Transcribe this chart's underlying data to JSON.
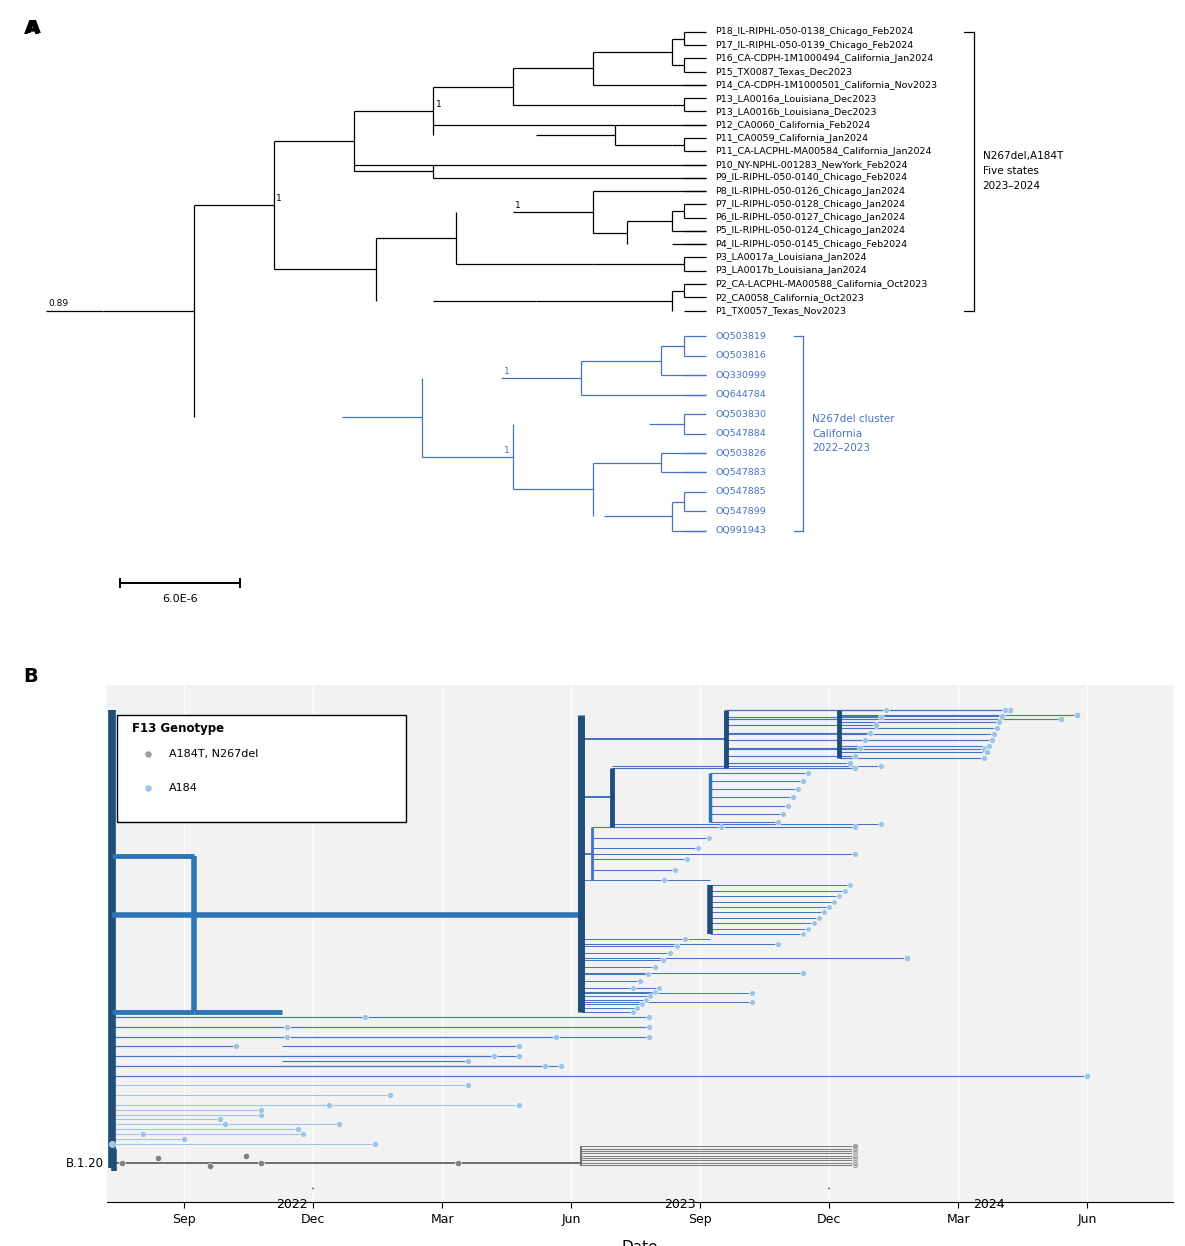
{
  "panel_A": {
    "black_taxa": [
      "P18_IL-RIPHL-050-0138_Chicago_Feb2024",
      "P17_IL-RIPHL-050-0139_Chicago_Feb2024",
      "P16_CA-CDPH-1M1000494_California_Jan2024",
      "P15_TX0087_Texas_Dec2023",
      "P14_CA-CDPH-1M1000501_California_Nov2023",
      "P13_LA0016a_Louisiana_Dec2023",
      "P13_LA0016b_Louisiana_Dec2023",
      "P12_CA0060_California_Feb2024",
      "P11_CA0059_California_Jan2024",
      "P11_CA-LACPHL-MA00584_California_Jan2024",
      "P10_NY-NPHL-001283_NewYork_Feb2024",
      "P9_IL-RIPHL-050-0140_Chicago_Feb2024",
      "P8_IL-RIPHL-050-0126_Chicago_Jan2024",
      "P7_IL-RIPHL-050-0128_Chicago_Jan2024",
      "P6_IL-RIPHL-050-0127_Chicago_Jan2024",
      "P5_IL-RIPHL-050-0124_Chicago_Jan2024",
      "P4_IL-RIPHL-050-0145_Chicago_Feb2024",
      "P3_LA0017a_Louisiana_Jan2024",
      "P3_LA0017b_Louisiana_Jan2024",
      "P2_CA-LACPHL-MA00588_California_Oct2023",
      "P2_CA0058_California_Oct2023",
      "P1_TX0057_Texas_Nov2023"
    ],
    "blue_taxa": [
      "OQ503819",
      "OQ503816",
      "OQ330999",
      "OQ644784",
      "OQ503830",
      "OQ547884",
      "OQ503826",
      "OQ547883",
      "OQ547885",
      "OQ547899",
      "OQ991943"
    ],
    "black_annotation": "N267del,A184T\nFive states\n2023–2024",
    "blue_annotation": "N267del cluster\nCalifornia\n2022–2023",
    "scale_label": "6.0E-6",
    "black_color": "#000000",
    "blue_color": "#4472C4",
    "bg_color": "#F2F2F2"
  },
  "panel_B": {
    "xlabel": "Date",
    "b120_label": "B.1.20",
    "legend_title": "F13 Genotype",
    "legend_entries": [
      "A184T, N267del",
      "A184"
    ],
    "legend_colors": [
      "#808080",
      "#5B9BD5"
    ],
    "blue_color": "#4472C4",
    "medium_blue": "#2E75B6",
    "dark_blue": "#1F4E79",
    "light_blue": "#9DC3E6",
    "gray_color": "#808080",
    "dark_gray": "#595959",
    "bg_color": "#F2F2F2",
    "grid_color": "#FFFFFF"
  }
}
